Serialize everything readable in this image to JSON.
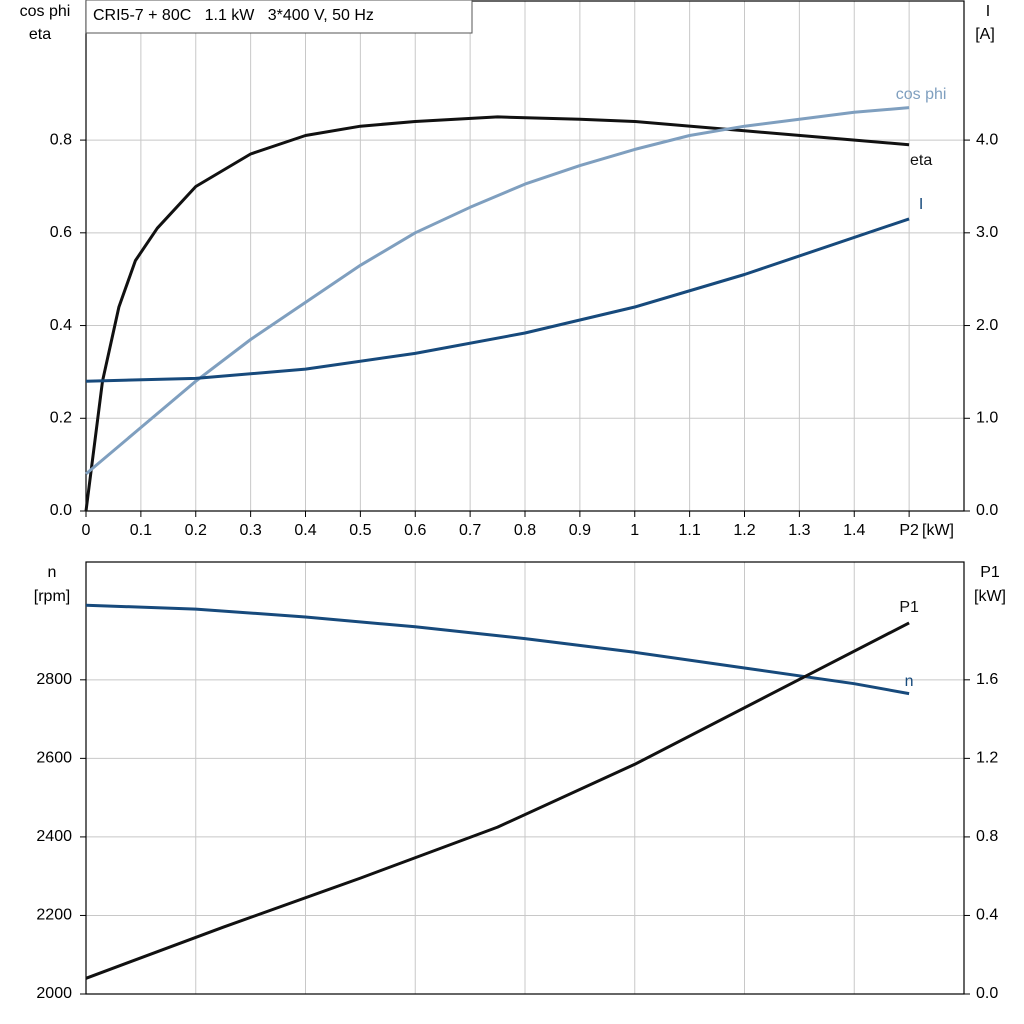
{
  "chart_data": [
    {
      "type": "line",
      "title": "CRI5-7 + 80C   1.1 kW   3*400 V, 50 Hz",
      "y_label": [
        "cos phi",
        "eta"
      ],
      "y2_label": [
        "I",
        "[A]"
      ],
      "x_label": "[kW]",
      "xlim": [
        0,
        1.6
      ],
      "xticks": [
        0,
        0.1,
        0.2,
        0.3,
        0.4,
        0.5,
        0.6,
        0.7,
        0.8,
        0.9,
        1.0,
        1.1,
        1.2,
        1.3,
        1.4,
        {
          "value": 1.5,
          "label": "P2"
        }
      ],
      "ylim": [
        0,
        1.1
      ],
      "yticks": [
        {
          "value": 0,
          "label": "0.0"
        },
        0.2,
        0.4,
        0.6,
        0.8
      ],
      "y2lim": [
        0,
        5.5
      ],
      "y2ticks": [
        {
          "value": 0,
          "label": "0.0"
        },
        {
          "value": 1,
          "label": "1.0"
        },
        {
          "value": 2,
          "label": "2.0"
        },
        {
          "value": 3,
          "label": "3.0"
        },
        {
          "value": 4,
          "label": "4.0"
        }
      ],
      "grid": true,
      "series": [
        {
          "name": "eta",
          "color": "#111111",
          "x": [
            0,
            0.03,
            0.06,
            0.09,
            0.13,
            0.2,
            0.3,
            0.4,
            0.5,
            0.6,
            0.75,
            0.9,
            1.0,
            1.2,
            1.35,
            1.5
          ],
          "values": [
            0,
            0.28,
            0.44,
            0.54,
            0.61,
            0.7,
            0.77,
            0.81,
            0.83,
            0.84,
            0.85,
            0.845,
            0.84,
            0.82,
            0.805,
            0.79
          ]
        },
        {
          "name": "cos phi",
          "color": "#7f9fbf",
          "x": [
            0,
            0.1,
            0.2,
            0.3,
            0.4,
            0.5,
            0.6,
            0.7,
            0.8,
            0.9,
            1.0,
            1.1,
            1.2,
            1.3,
            1.4,
            1.5
          ],
          "values": [
            0.08,
            0.18,
            0.28,
            0.37,
            0.45,
            0.53,
            0.6,
            0.655,
            0.705,
            0.745,
            0.78,
            0.81,
            0.83,
            0.845,
            0.86,
            0.87
          ]
        },
        {
          "name": "I",
          "color": "#174a7c",
          "axis": "y2",
          "x": [
            0,
            0.2,
            0.4,
            0.6,
            0.8,
            1.0,
            1.2,
            1.5
          ],
          "values": [
            1.4,
            1.43,
            1.53,
            1.7,
            1.92,
            2.2,
            2.55,
            3.15
          ]
        }
      ]
    },
    {
      "type": "line",
      "y_label": [
        "n",
        "[rpm]"
      ],
      "y2_label": [
        "P1",
        "[kW]"
      ],
      "xlim": [
        0,
        1.6
      ],
      "xgrid": [
        0.2,
        0.4,
        0.6,
        0.8,
        1.0,
        1.2,
        1.4
      ],
      "ylim": [
        2000,
        3100
      ],
      "yticks": [
        2000,
        2200,
        2400,
        2600,
        2800
      ],
      "y2lim": [
        0,
        2.2
      ],
      "y2ticks": [
        {
          "value": 0,
          "label": "0.0"
        },
        0.4,
        0.8,
        1.2,
        1.6
      ],
      "grid": true,
      "series": [
        {
          "name": "n",
          "color": "#174a7c",
          "x": [
            0,
            0.2,
            0.4,
            0.6,
            0.8,
            1.0,
            1.2,
            1.4,
            1.5
          ],
          "values": [
            2990,
            2980,
            2960,
            2935,
            2905,
            2870,
            2830,
            2790,
            2765
          ]
        },
        {
          "name": "P1",
          "color": "#111111",
          "axis": "y2",
          "x": [
            0,
            0.25,
            0.5,
            0.75,
            1.0,
            1.25,
            1.5
          ],
          "values": [
            0.08,
            0.34,
            0.59,
            0.85,
            1.17,
            1.53,
            1.89
          ]
        }
      ]
    }
  ]
}
